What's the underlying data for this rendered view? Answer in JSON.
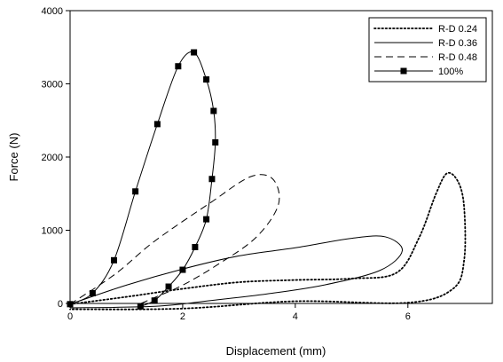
{
  "chart_data": {
    "type": "line",
    "title": "",
    "xlabel": "Displacement (mm)",
    "ylabel": "Force (N)",
    "xlim": [
      0,
      7.5
    ],
    "ylim": [
      0,
      4000
    ],
    "x_ticks": [
      0,
      2,
      4,
      6
    ],
    "y_ticks": [
      0,
      1000,
      2000,
      3000,
      4000
    ],
    "x_tick_labels": [
      "0",
      "2",
      "4",
      "6"
    ],
    "y_tick_labels": [
      "0",
      "1000",
      "2000",
      "3000",
      "4000"
    ],
    "grid": false,
    "legend_position": "top-right",
    "series": [
      {
        "name": "R-D 0.24",
        "style": "dotted",
        "marker": "none",
        "color": "#000000",
        "points": [
          [
            0,
            -10
          ],
          [
            1.0,
            90
          ],
          [
            2.0,
            200
          ],
          [
            3.0,
            290
          ],
          [
            4.0,
            320
          ],
          [
            5.0,
            340
          ],
          [
            5.8,
            420
          ],
          [
            6.2,
            900
          ],
          [
            6.5,
            1500
          ],
          [
            6.7,
            1780
          ],
          [
            6.9,
            1650
          ],
          [
            7.0,
            1300
          ],
          [
            7.0,
            600
          ],
          [
            6.8,
            200
          ],
          [
            6.0,
            10
          ],
          [
            4.0,
            30
          ],
          [
            2.0,
            -70
          ],
          [
            0,
            -80
          ]
        ]
      },
      {
        "name": "R-D 0.36",
        "style": "solid",
        "marker": "none",
        "color": "#000000",
        "points": [
          [
            0,
            -10
          ],
          [
            1.0,
            250
          ],
          [
            2.0,
            470
          ],
          [
            3.0,
            650
          ],
          [
            4.0,
            760
          ],
          [
            5.0,
            890
          ],
          [
            5.6,
            910
          ],
          [
            5.9,
            720
          ],
          [
            5.5,
            450
          ],
          [
            4.5,
            250
          ],
          [
            3.5,
            130
          ],
          [
            2.5,
            40
          ],
          [
            1.5,
            -40
          ],
          [
            0,
            -60
          ]
        ]
      },
      {
        "name": "R-D 0.48",
        "style": "dashed",
        "marker": "none",
        "color": "#000000",
        "points": [
          [
            0,
            -10
          ],
          [
            0.8,
            400
          ],
          [
            1.5,
            850
          ],
          [
            2.5,
            1380
          ],
          [
            3.2,
            1730
          ],
          [
            3.6,
            1700
          ],
          [
            3.7,
            1350
          ],
          [
            3.3,
            900
          ],
          [
            2.6,
            520
          ],
          [
            2.0,
            250
          ],
          [
            1.5,
            80
          ],
          [
            1.2,
            -20
          ]
        ]
      },
      {
        "name": "100%",
        "style": "solid",
        "marker": "square",
        "color": "#000000",
        "points": [
          [
            0,
            -10
          ],
          [
            0.4,
            140
          ],
          [
            0.78,
            590
          ],
          [
            1.16,
            1530
          ],
          [
            1.55,
            2450
          ],
          [
            1.92,
            3240
          ],
          [
            2.2,
            3430
          ],
          [
            2.42,
            3060
          ],
          [
            2.55,
            2630
          ],
          [
            2.58,
            2200
          ],
          [
            2.52,
            1700
          ],
          [
            2.42,
            1150
          ],
          [
            2.22,
            770
          ],
          [
            2.0,
            460
          ],
          [
            1.75,
            230
          ],
          [
            1.5,
            40
          ],
          [
            1.25,
            -40
          ]
        ]
      }
    ]
  }
}
